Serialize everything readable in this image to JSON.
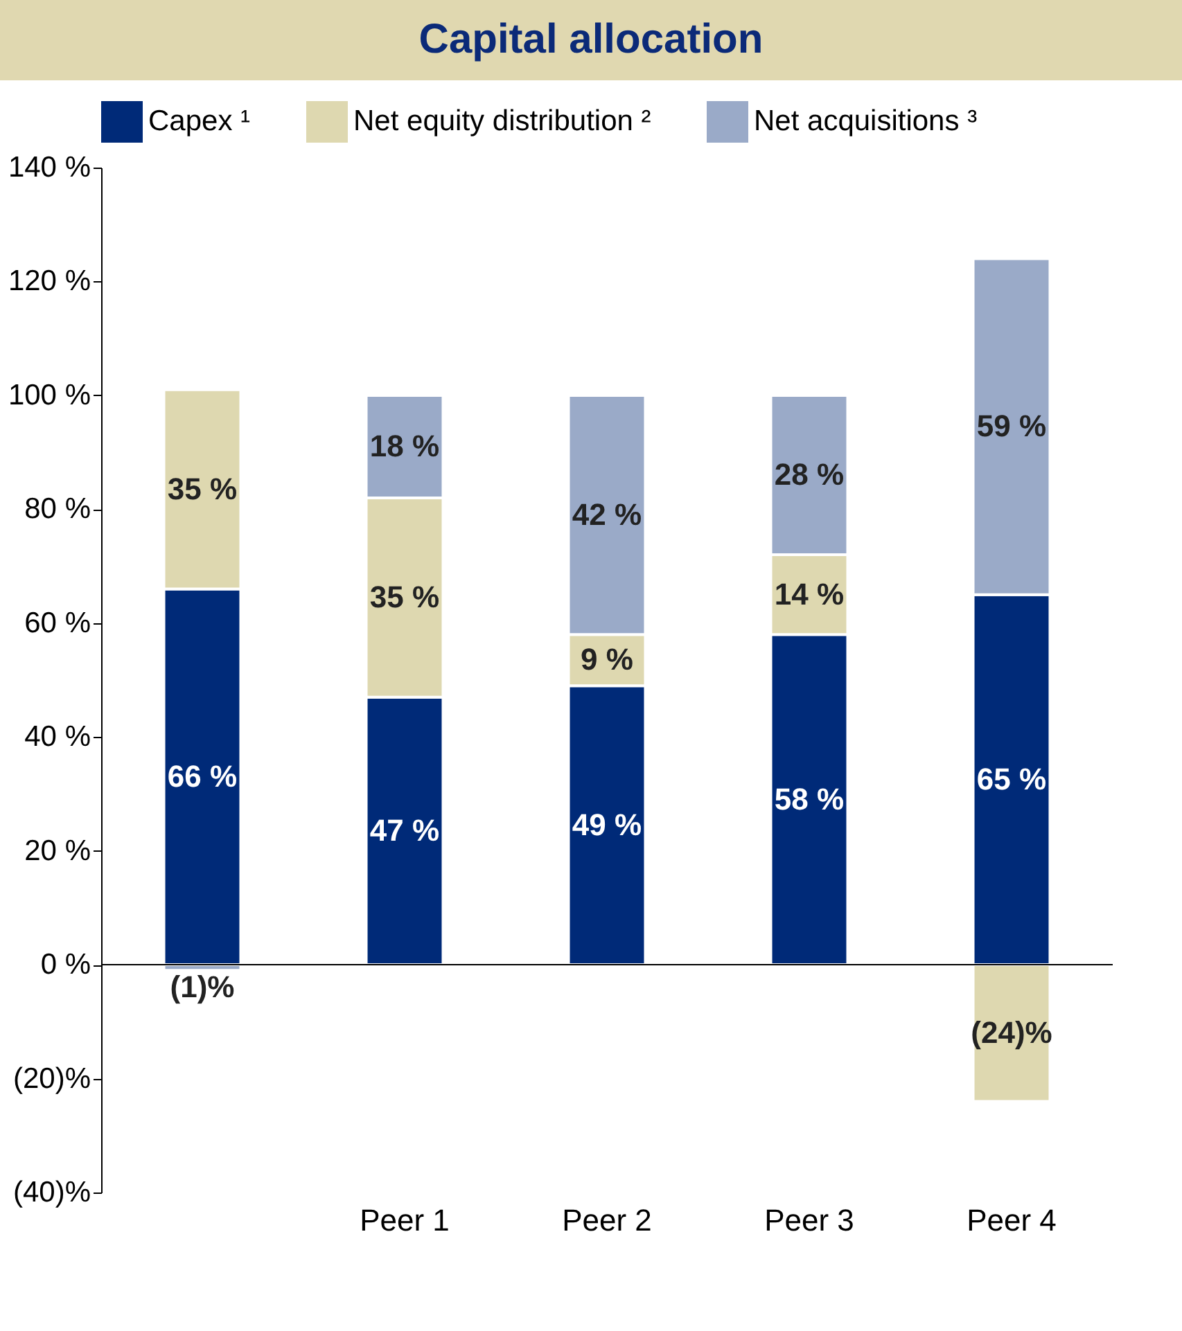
{
  "chart_data": {
    "type": "bar",
    "title": "Capital allocation",
    "stacked": true,
    "categories": [
      null,
      "Peer 1",
      "Peer 2",
      "Peer 3",
      "Peer 4"
    ],
    "series": [
      {
        "name": "Capex ¹",
        "color": "#002a78",
        "values": [
          66,
          47,
          49,
          58,
          65
        ],
        "value_labels": [
          "66 %",
          "47 %",
          "49 %",
          "58 %",
          "65 %"
        ]
      },
      {
        "name": "Net equity distribution ²",
        "color": "#ded8b0",
        "values": [
          35,
          35,
          9,
          14,
          -24
        ],
        "value_labels": [
          "35 %",
          "35 %",
          "9 %",
          "14 %",
          "(24)%"
        ]
      },
      {
        "name": "Net acquisitions ³",
        "color": "#9aaac8",
        "values": [
          -1,
          18,
          42,
          28,
          59
        ],
        "value_labels": [
          "(1)%",
          "18 %",
          "42 %",
          "28 %",
          "59 %"
        ]
      }
    ],
    "ylim": [
      -40,
      140
    ],
    "yticks": [
      {
        "value": -40,
        "label": "(40)%"
      },
      {
        "value": -20,
        "label": "(20)%"
      },
      {
        "value": 0,
        "label": "0 %"
      },
      {
        "value": 20,
        "label": "20 %"
      },
      {
        "value": 40,
        "label": "40 %"
      },
      {
        "value": 60,
        "label": "60 %"
      },
      {
        "value": 80,
        "label": "80 %"
      },
      {
        "value": 100,
        "label": "100 %"
      },
      {
        "value": 120,
        "label": "120 %"
      },
      {
        "value": 140,
        "label": "140 %"
      }
    ],
    "ref_lines": [
      {
        "axis": "y",
        "value": 0
      }
    ],
    "grid": false,
    "legend": "top"
  }
}
